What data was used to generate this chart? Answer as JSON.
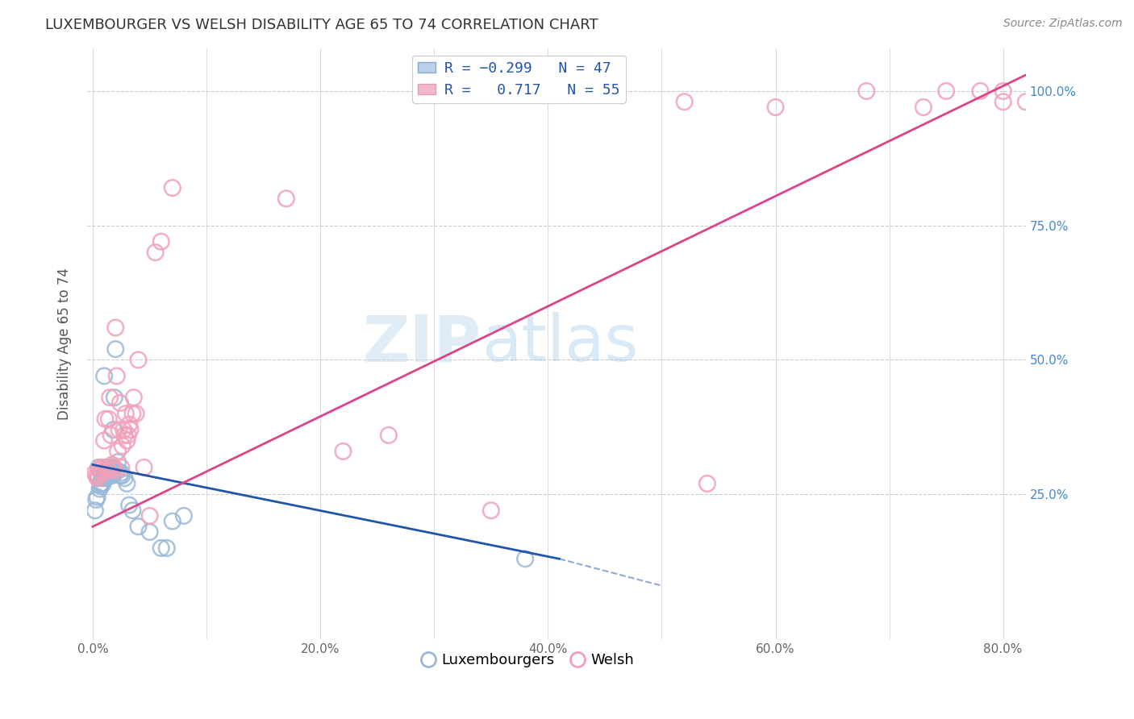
{
  "title": "LUXEMBOURGER VS WELSH DISABILITY AGE 65 TO 74 CORRELATION CHART",
  "source": "Source: ZipAtlas.com",
  "ylabel": "Disability Age 65 to 74",
  "x_tick_labels": [
    "0.0%",
    "",
    "20.0%",
    "",
    "40.0%",
    "",
    "60.0%",
    "",
    "80.0%"
  ],
  "x_tick_values": [
    0.0,
    0.1,
    0.2,
    0.3,
    0.4,
    0.5,
    0.6,
    0.7,
    0.8
  ],
  "y_tick_values": [
    0.0,
    0.25,
    0.5,
    0.75,
    1.0
  ],
  "y_tick_labels_right": [
    "",
    "25.0%",
    "50.0%",
    "75.0%",
    "100.0%"
  ],
  "xlim": [
    -0.005,
    0.82
  ],
  "ylim": [
    -0.02,
    1.08
  ],
  "legend_labels": [
    "Luxembourgers",
    "Welsh"
  ],
  "blue_color": "#9ab8d8",
  "pink_color": "#f2a0b8",
  "blue_line_color": "#2255aa",
  "pink_line_color": "#dd4488",
  "watermark_zip": "ZIP",
  "watermark_atlas": "atlas",
  "background_color": "#ffffff",
  "grid_color": "#cccccc",
  "blue_scatter_x": [
    0.002,
    0.003,
    0.004,
    0.005,
    0.005,
    0.006,
    0.007,
    0.007,
    0.008,
    0.008,
    0.009,
    0.009,
    0.01,
    0.01,
    0.011,
    0.011,
    0.012,
    0.012,
    0.013,
    0.013,
    0.014,
    0.014,
    0.015,
    0.015,
    0.016,
    0.016,
    0.017,
    0.017,
    0.018,
    0.019,
    0.02,
    0.021,
    0.022,
    0.024,
    0.025,
    0.026,
    0.028,
    0.03,
    0.032,
    0.035,
    0.04,
    0.05,
    0.06,
    0.065,
    0.07,
    0.08,
    0.38
  ],
  "blue_scatter_y": [
    0.22,
    0.24,
    0.245,
    0.28,
    0.3,
    0.26,
    0.265,
    0.27,
    0.27,
    0.28,
    0.27,
    0.285,
    0.47,
    0.285,
    0.28,
    0.29,
    0.295,
    0.285,
    0.285,
    0.29,
    0.29,
    0.295,
    0.295,
    0.3,
    0.3,
    0.285,
    0.285,
    0.29,
    0.37,
    0.43,
    0.52,
    0.295,
    0.31,
    0.285,
    0.29,
    0.285,
    0.28,
    0.27,
    0.23,
    0.22,
    0.19,
    0.18,
    0.15,
    0.15,
    0.2,
    0.21,
    0.13
  ],
  "pink_scatter_x": [
    0.002,
    0.003,
    0.004,
    0.005,
    0.006,
    0.007,
    0.008,
    0.009,
    0.01,
    0.011,
    0.012,
    0.013,
    0.014,
    0.015,
    0.016,
    0.017,
    0.018,
    0.019,
    0.02,
    0.021,
    0.022,
    0.023,
    0.024,
    0.025,
    0.026,
    0.027,
    0.028,
    0.029,
    0.03,
    0.031,
    0.032,
    0.033,
    0.035,
    0.036,
    0.038,
    0.04,
    0.045,
    0.05,
    0.055,
    0.06,
    0.07,
    0.52,
    0.6,
    0.68,
    0.73,
    0.75,
    0.78,
    0.8,
    0.8,
    0.82,
    0.54,
    0.35,
    0.26,
    0.22,
    0.17
  ],
  "pink_scatter_y": [
    0.29,
    0.285,
    0.28,
    0.285,
    0.295,
    0.3,
    0.29,
    0.3,
    0.35,
    0.39,
    0.3,
    0.295,
    0.39,
    0.43,
    0.36,
    0.305,
    0.3,
    0.295,
    0.56,
    0.47,
    0.33,
    0.37,
    0.42,
    0.3,
    0.34,
    0.37,
    0.36,
    0.4,
    0.35,
    0.36,
    0.38,
    0.37,
    0.4,
    0.43,
    0.4,
    0.5,
    0.3,
    0.21,
    0.7,
    0.72,
    0.82,
    0.98,
    0.97,
    1.0,
    0.97,
    1.0,
    1.0,
    0.98,
    1.0,
    0.98,
    0.27,
    0.22,
    0.36,
    0.33,
    0.8
  ],
  "blue_line_x0": 0.0,
  "blue_line_x1": 0.41,
  "blue_line_y0": 0.305,
  "blue_line_y1": 0.13,
  "blue_line_dashed_x1": 0.5,
  "blue_line_dashed_y1": 0.08,
  "pink_line_x0": 0.0,
  "pink_line_x1": 0.82,
  "pink_line_y0": 0.19,
  "pink_line_y1": 1.03
}
